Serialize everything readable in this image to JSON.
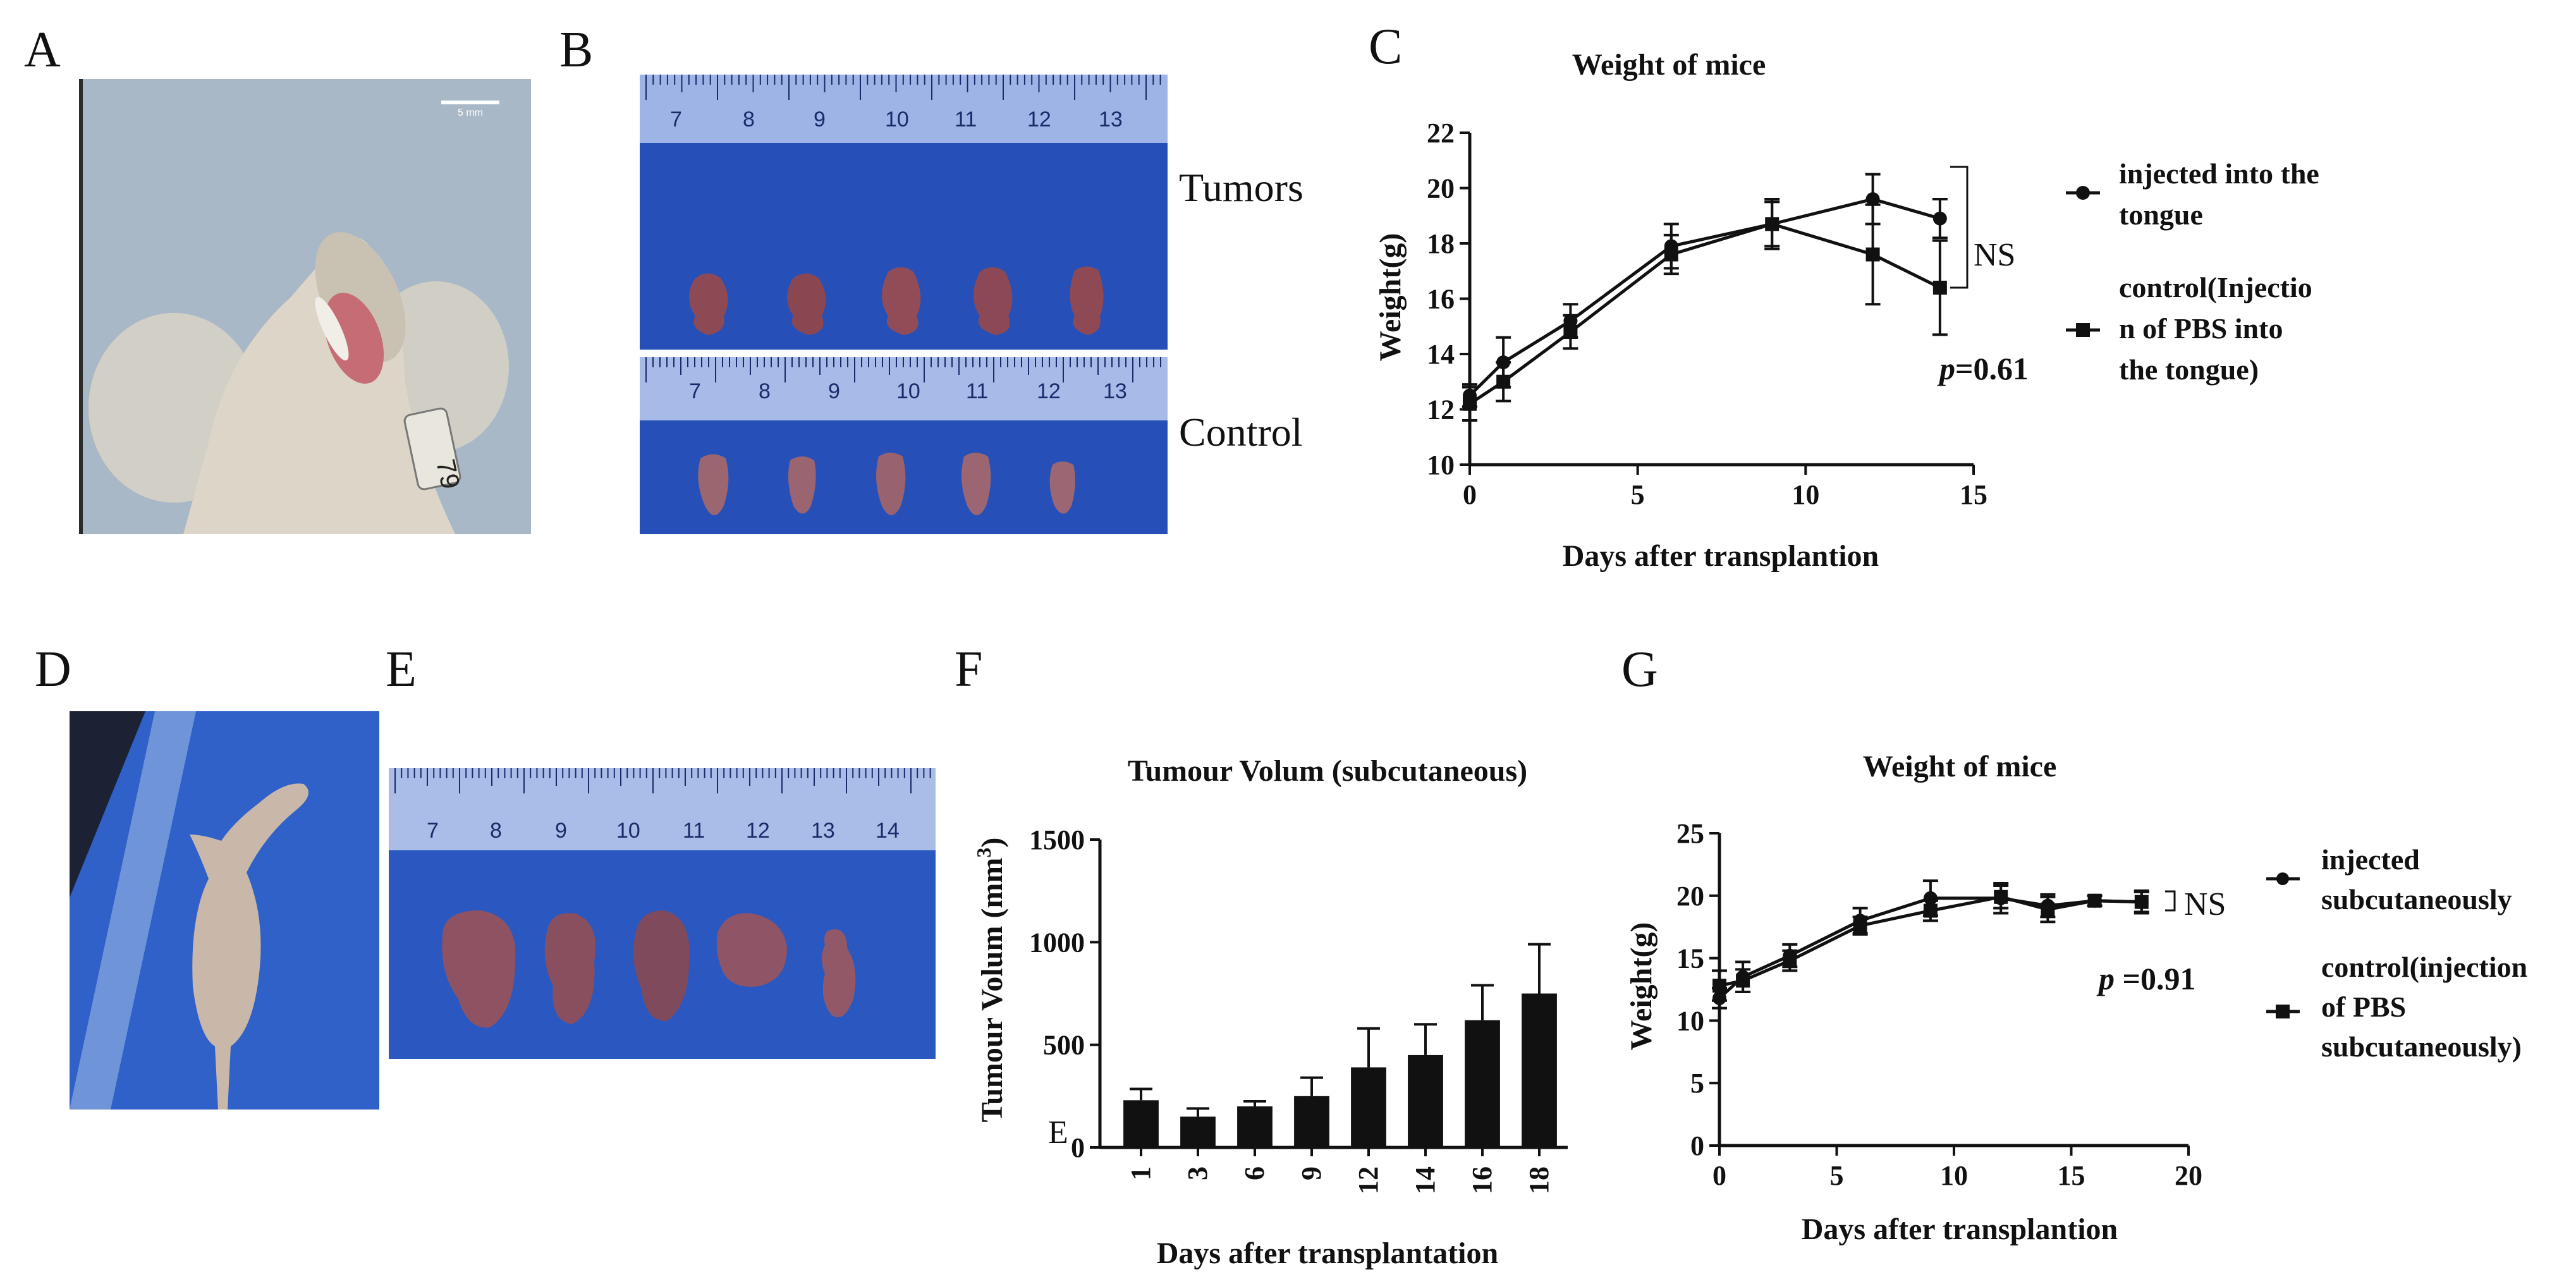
{
  "panels": {
    "A": "A",
    "B": "B",
    "C": "C",
    "D": "D",
    "E": "E",
    "F": "F",
    "G": "G"
  },
  "photoA": {
    "scale_text": "5 mm",
    "tag_text": "79"
  },
  "photoB": {
    "tumors_label": "Tumors",
    "control_label": "Control",
    "ruler_top": [
      "7",
      "8",
      "9",
      "10",
      "11",
      "12",
      "13"
    ],
    "ruler_bottom": [
      "7",
      "8",
      "9",
      "10",
      "11",
      "12",
      "13"
    ]
  },
  "photoE": {
    "ruler": [
      "7",
      "8",
      "9",
      "10",
      "11",
      "12",
      "13",
      "14"
    ]
  },
  "chartC": {
    "title": "Weight of mice",
    "xlabel": "Days after transplantion",
    "ylabel": "Weight(g)",
    "annotation_ns": "NS",
    "p_prefix": "p",
    "p_value": "=0.61",
    "legend": {
      "series1": [
        "injected into the",
        "tongue"
      ],
      "series2": [
        "control(Injectio",
        "n of PBS into",
        "the tongue)"
      ]
    }
  },
  "chartF": {
    "title": "Tumour Volum (subcutaneous)",
    "xlabel": "Days after transplantation",
    "ylabel": "Tumour Volum (mm",
    "ylabel_sup": "3",
    "ylabel_end": ")",
    "stray_letter": "E"
  },
  "chartG": {
    "title": "Weight of mice",
    "xlabel": "Days after transplantion",
    "ylabel": "Weight(g)",
    "annotation_ns": "NS",
    "p_prefix": "p",
    "p_value": " =0.91",
    "legend": {
      "series1": [
        "injected",
        "subcutaneously"
      ],
      "series2": [
        "control(injection",
        "of PBS",
        "subcutaneously)"
      ]
    }
  },
  "chart_data": [
    {
      "id": "C",
      "type": "line",
      "title": "Weight of mice",
      "xlabel": "Days after transplantion",
      "ylabel": "Weight(g)",
      "xlim": [
        0,
        15
      ],
      "ylim": [
        10,
        22
      ],
      "xticks": [
        0,
        5,
        10,
        15
      ],
      "yticks": [
        10,
        12,
        14,
        16,
        18,
        20,
        22
      ],
      "series": [
        {
          "name": "injected into the tongue",
          "marker": "circle",
          "x": [
            0,
            1,
            3,
            6,
            9,
            12,
            14
          ],
          "y": [
            12.5,
            13.7,
            15.2,
            17.9,
            18.7,
            19.6,
            18.9
          ],
          "err": [
            0.4,
            0.9,
            0.6,
            0.8,
            0.9,
            0.9,
            0.7
          ]
        },
        {
          "name": "control(Injection of PBS into the tongue)",
          "marker": "square",
          "x": [
            0,
            1,
            3,
            6,
            9,
            12,
            14
          ],
          "y": [
            12.2,
            13.0,
            14.8,
            17.6,
            18.7,
            17.6,
            16.4
          ],
          "err": [
            0.6,
            0.7,
            0.6,
            0.7,
            0.8,
            1.8,
            1.7
          ]
        }
      ],
      "annotation": "NS",
      "p_value": "p=0.61"
    },
    {
      "id": "F",
      "type": "bar",
      "title": "Tumour Volum (subcutaneous)",
      "xlabel": "Days after transplantation",
      "ylabel": "Tumour Volum (mm3)",
      "ylim": [
        0,
        1500
      ],
      "yticks": [
        0,
        500,
        1000,
        1500
      ],
      "categories": [
        "1",
        "3",
        "6",
        "9",
        "12",
        "14",
        "16",
        "18"
      ],
      "values": [
        230,
        150,
        200,
        250,
        390,
        450,
        620,
        750
      ],
      "err": [
        55,
        40,
        25,
        90,
        190,
        150,
        170,
        240
      ]
    },
    {
      "id": "G",
      "type": "line",
      "title": "Weight of mice",
      "xlabel": "Days after transplantion",
      "ylabel": "Weight(g)",
      "xlim": [
        0,
        20
      ],
      "ylim": [
        0,
        25
      ],
      "xticks": [
        0,
        5,
        10,
        15,
        20
      ],
      "yticks": [
        0,
        5,
        10,
        15,
        20,
        25
      ],
      "series": [
        {
          "name": "injected subcutaneously",
          "marker": "circle",
          "x": [
            0,
            1,
            3,
            6,
            9,
            12,
            14,
            16,
            18
          ],
          "y": [
            11.8,
            13.5,
            15.2,
            18.0,
            19.8,
            19.8,
            19.2,
            19.6,
            19.5
          ],
          "err": [
            0.8,
            1.2,
            0.9,
            1.0,
            1.4,
            1.2,
            0.9,
            0.4,
            0.8
          ]
        },
        {
          "name": "control(injection of PBS subcutaneously)",
          "marker": "square",
          "x": [
            0,
            1,
            3,
            6,
            9,
            12,
            14,
            16,
            18
          ],
          "y": [
            12.8,
            13.2,
            14.8,
            17.6,
            18.8,
            19.9,
            18.9,
            19.6,
            19.5
          ],
          "err": [
            1.2,
            0.9,
            0.8,
            0.7,
            0.8,
            0.9,
            1.0,
            0.4,
            0.9
          ]
        }
      ],
      "annotation": "NS",
      "p_value": "p =0.91"
    }
  ]
}
